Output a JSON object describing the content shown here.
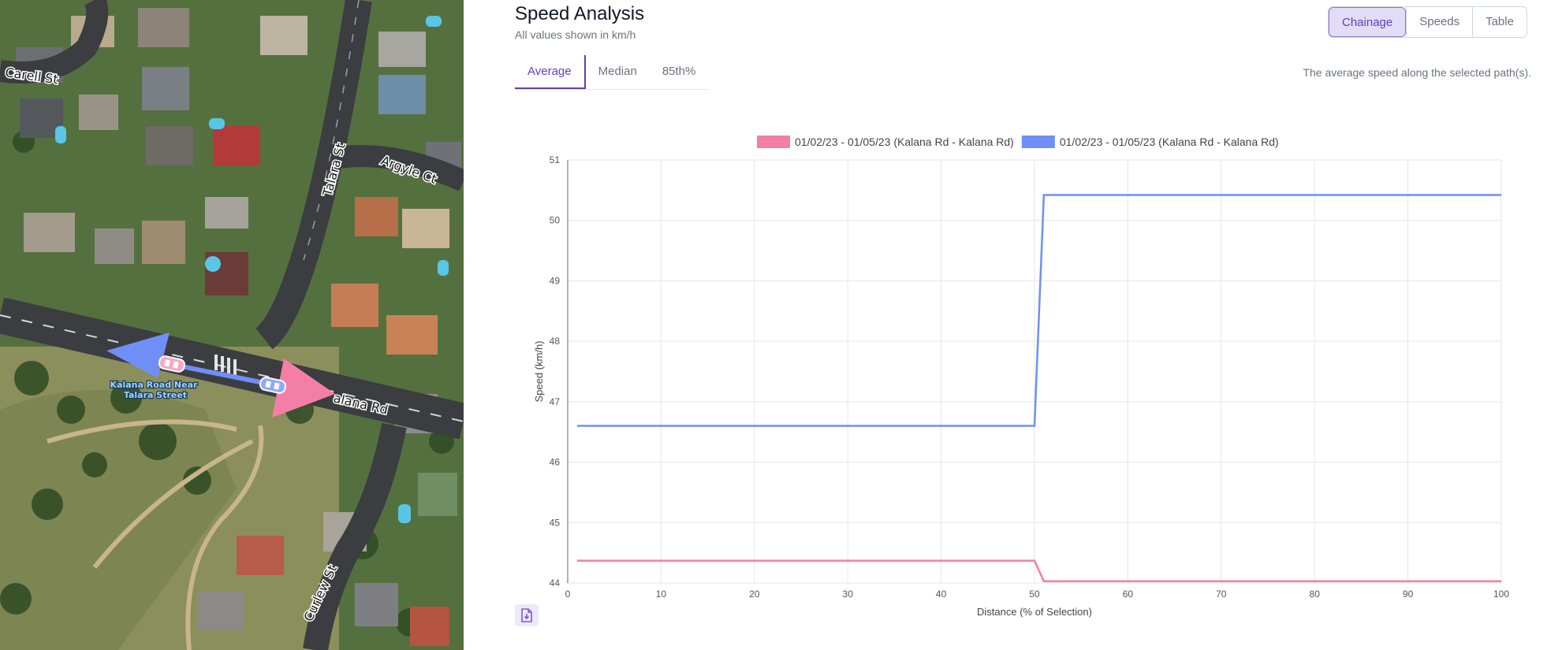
{
  "map": {
    "street_labels": {
      "carell": "Carell St",
      "talara": "Talara St",
      "argyle": "Argyle Ct",
      "kalana": "alana Rd",
      "curlew": "Curlew St"
    },
    "poi_label_line1": "Kalana Road Near",
    "poi_label_line2": "Talara Street",
    "arrow_colors": {
      "westbound": "#6f8ff7",
      "eastbound": "#f47fa6"
    }
  },
  "header": {
    "title": "Speed Analysis",
    "subtitle": "All values shown in km/h"
  },
  "view_toggle": {
    "options": [
      "Chainage",
      "Speeds",
      "Table"
    ],
    "selected": "Chainage"
  },
  "stat_tabs": {
    "options": [
      "Average",
      "Median",
      "85th%"
    ],
    "selected": "Average",
    "description": "The average speed along the selected path(s)."
  },
  "chart_data": {
    "type": "line",
    "xlabel": "Distance (% of Selection)",
    "ylabel": "Speed (km/h)",
    "xlim": [
      0,
      100
    ],
    "ylim": [
      44,
      51
    ],
    "xticks": [
      0,
      10,
      20,
      30,
      40,
      50,
      60,
      70,
      80,
      90,
      100
    ],
    "yticks": [
      44,
      45,
      46,
      47,
      48,
      49,
      50,
      51
    ],
    "grid": true,
    "legend_position": "top",
    "series": [
      {
        "name": "01/02/23 - 01/05/23 (Kalana Rd - Kalana Rd)",
        "color": "#f47fa6",
        "x": [
          1,
          50,
          51,
          100
        ],
        "y": [
          44.37,
          44.37,
          44.03,
          44.03
        ]
      },
      {
        "name": "01/02/23 - 01/05/23 (Kalana Rd - Kalana Rd)",
        "color": "#6f8ff7",
        "x": [
          1,
          50,
          51,
          100
        ],
        "y": [
          46.6,
          46.6,
          50.42,
          50.42
        ]
      }
    ]
  },
  "export": {
    "icon": "file-export-icon",
    "color": "#7c5bd6"
  }
}
